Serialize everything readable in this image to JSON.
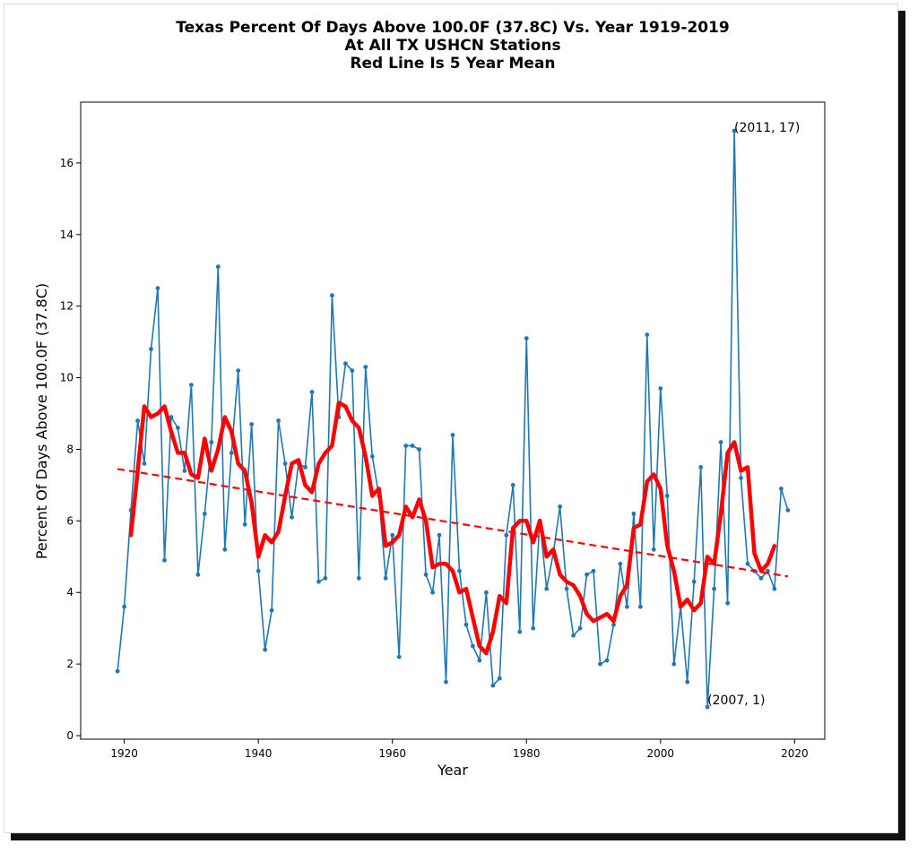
{
  "chart_data": {
    "type": "line",
    "title_lines": [
      "Texas Percent Of Days Above 100.0F (37.8C) Vs. Year 1919-2019",
      "At All TX USHCN Stations",
      "Red Line Is 5 Year Mean"
    ],
    "xlabel": "Year",
    "ylabel": "Percent Of Days Above 100.0F (37.8C)",
    "xlim": [
      1913.5,
      2024.5
    ],
    "ylim": [
      -0.1,
      17.7
    ],
    "xticks": [
      1920,
      1940,
      1960,
      1980,
      2000,
      2020
    ],
    "yticks": [
      0,
      2,
      4,
      6,
      8,
      10,
      12,
      14,
      16
    ],
    "xtick_labels": [
      "1920",
      "1940",
      "1960",
      "1980",
      "2000",
      "2020"
    ],
    "ytick_labels": [
      "0",
      "2",
      "4",
      "6",
      "8",
      "10",
      "12",
      "14",
      "16"
    ],
    "colors": {
      "data": "#1f77b4",
      "mean": "#ff0000",
      "trend": "#ff0000"
    },
    "grid": false,
    "series": [
      {
        "style": "blue-line-with-dots",
        "x": [
          1919,
          1920,
          1921,
          1922,
          1923,
          1924,
          1925,
          1926,
          1927,
          1928,
          1929,
          1930,
          1931,
          1932,
          1933,
          1934,
          1935,
          1936,
          1937,
          1938,
          1939,
          1940,
          1941,
          1942,
          1943,
          1944,
          1945,
          1946,
          1947,
          1948,
          1949,
          1950,
          1951,
          1952,
          1953,
          1954,
          1955,
          1956,
          1957,
          1958,
          1959,
          1960,
          1961,
          1962,
          1963,
          1964,
          1965,
          1966,
          1967,
          1968,
          1969,
          1970,
          1971,
          1972,
          1973,
          1974,
          1975,
          1976,
          1977,
          1978,
          1979,
          1980,
          1981,
          1982,
          1983,
          1984,
          1985,
          1986,
          1987,
          1988,
          1989,
          1990,
          1991,
          1992,
          1993,
          1994,
          1995,
          1996,
          1997,
          1998,
          1999,
          2000,
          2001,
          2002,
          2003,
          2004,
          2005,
          2006,
          2007,
          2008,
          2009,
          2010,
          2011,
          2012,
          2013,
          2014,
          2015,
          2016,
          2017,
          2018,
          2019
        ],
        "y": [
          1.8,
          3.6,
          6.3,
          8.8,
          7.6,
          10.8,
          12.5,
          4.9,
          8.9,
          8.6,
          7.4,
          9.8,
          4.5,
          6.2,
          8.2,
          13.1,
          5.2,
          7.9,
          10.2,
          5.9,
          8.7,
          4.6,
          2.4,
          3.5,
          8.8,
          7.6,
          6.1,
          7.6,
          7.5,
          9.6,
          4.3,
          4.4,
          12.3,
          8.9,
          10.4,
          10.2,
          4.4,
          10.3,
          7.8,
          6.7,
          4.4,
          5.6,
          2.2,
          8.1,
          8.1,
          8.0,
          4.5,
          4.0,
          5.6,
          1.5,
          8.4,
          4.6,
          3.1,
          2.5,
          2.1,
          4.0,
          1.4,
          1.6,
          5.6,
          7.0,
          2.9,
          11.1,
          3.0,
          6.0,
          4.1,
          5.1,
          6.4,
          4.1,
          2.8,
          3.0,
          4.5,
          4.6,
          2.0,
          2.1,
          3.1,
          4.8,
          3.6,
          6.2,
          3.6,
          11.2,
          5.2,
          9.7,
          6.7,
          2.0,
          3.6,
          1.5,
          4.3,
          7.5,
          0.8,
          4.1,
          8.2,
          3.7,
          16.9,
          7.2,
          4.8,
          4.6,
          4.4,
          4.6,
          4.1,
          6.9,
          6.3
        ]
      },
      {
        "style": "red-thick-line",
        "x": [
          1921,
          1922,
          1923,
          1924,
          1925,
          1926,
          1927,
          1928,
          1929,
          1930,
          1931,
          1932,
          1933,
          1934,
          1935,
          1936,
          1937,
          1938,
          1939,
          1940,
          1941,
          1942,
          1943,
          1944,
          1945,
          1946,
          1947,
          1948,
          1949,
          1950,
          1951,
          1952,
          1953,
          1954,
          1955,
          1956,
          1957,
          1958,
          1959,
          1960,
          1961,
          1962,
          1963,
          1964,
          1965,
          1966,
          1967,
          1968,
          1969,
          1970,
          1971,
          1972,
          1973,
          1974,
          1975,
          1976,
          1977,
          1978,
          1979,
          1980,
          1981,
          1982,
          1983,
          1984,
          1985,
          1986,
          1987,
          1988,
          1989,
          1990,
          1991,
          1992,
          1993,
          1994,
          1995,
          1996,
          1997,
          1998,
          1999,
          2000,
          2001,
          2002,
          2003,
          2004,
          2005,
          2006,
          2007,
          2008,
          2009,
          2010,
          2011,
          2012,
          2013,
          2014,
          2015,
          2016,
          2017
        ],
        "y": [
          5.6,
          7.4,
          9.2,
          8.9,
          9.0,
          9.2,
          8.5,
          7.9,
          7.9,
          7.3,
          7.2,
          8.3,
          7.4,
          8.0,
          8.9,
          8.5,
          7.6,
          7.4,
          6.5,
          5.0,
          5.6,
          5.4,
          5.7,
          6.7,
          7.6,
          7.7,
          7.0,
          6.8,
          7.6,
          7.9,
          8.1,
          9.3,
          9.2,
          8.8,
          8.6,
          7.8,
          6.7,
          6.9,
          5.3,
          5.4,
          5.6,
          6.4,
          6.1,
          6.6,
          6.0,
          4.7,
          4.8,
          4.8,
          4.6,
          4.0,
          4.1,
          3.3,
          2.5,
          2.3,
          2.9,
          3.9,
          3.7,
          5.8,
          6.0,
          6.0,
          5.4,
          6.0,
          5.0,
          5.2,
          4.5,
          4.3,
          4.2,
          3.9,
          3.4,
          3.2,
          3.3,
          3.4,
          3.2,
          3.9,
          4.2,
          5.8,
          5.9,
          7.1,
          7.3,
          6.9,
          5.3,
          4.6,
          3.6,
          3.8,
          3.5,
          3.7,
          5.0,
          4.8,
          6.2,
          7.9,
          8.2,
          7.4,
          7.5,
          5.1,
          4.6,
          4.8,
          5.3
        ]
      },
      {
        "style": "red-dashed-line",
        "x": [
          1919,
          2019
        ],
        "y": [
          7.45,
          4.45
        ]
      }
    ],
    "annotations": [
      {
        "x": 2011,
        "y": 17,
        "text": "(2011, 17)"
      },
      {
        "x": 2007,
        "y": 1,
        "text": "(2007, 1)"
      }
    ]
  }
}
